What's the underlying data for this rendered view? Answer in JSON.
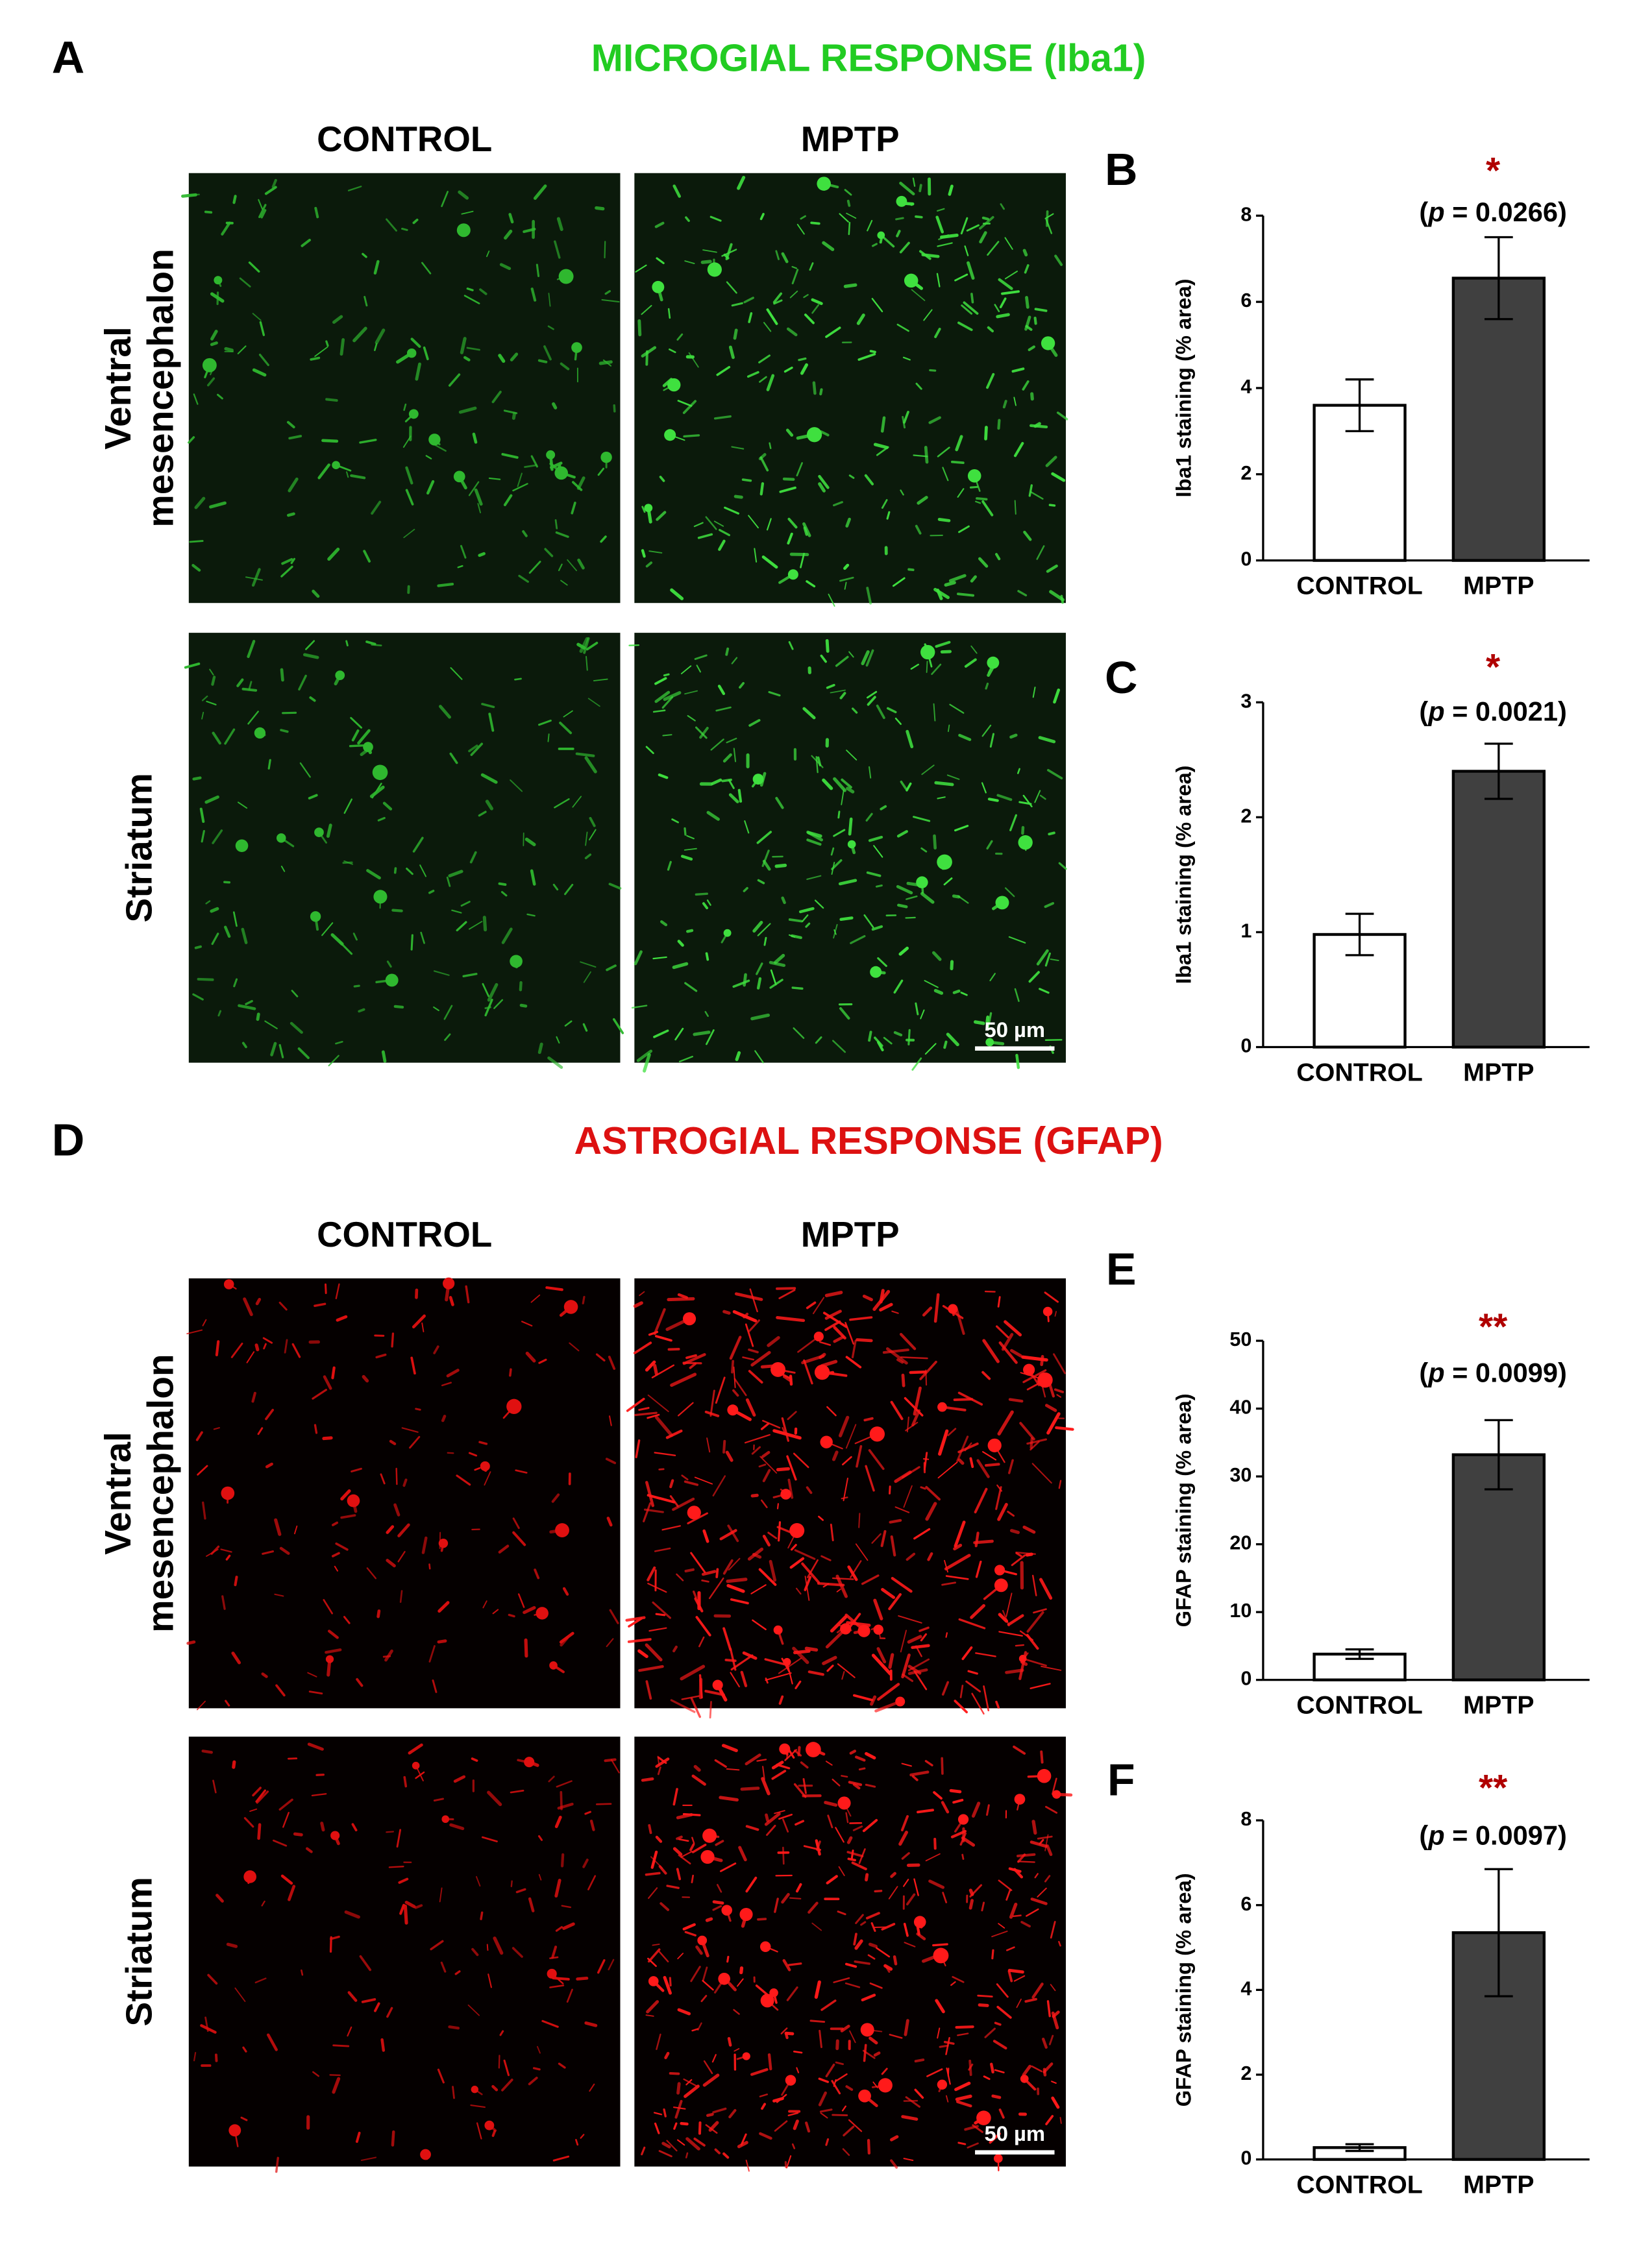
{
  "sections": [
    {
      "panel": "A",
      "title": "MICROGIAL RESPONSE (Iba1)",
      "title_color": "#22cc22",
      "stain": "green",
      "columns": [
        "CONTROL",
        "MPTP"
      ],
      "rows": [
        [
          "Ventral",
          "mesencephalon"
        ],
        [
          "Striatum"
        ]
      ],
      "scale_bar": "50 µm"
    },
    {
      "panel": "D",
      "title": "ASTROGIAL RESPONSE (GFAP)",
      "title_color": "#dd1111",
      "stain": "red",
      "columns": [
        "CONTROL",
        "MPTP"
      ],
      "rows": [
        [
          "Ventral",
          "mesencephalon"
        ],
        [
          "Striatum"
        ]
      ],
      "scale_bar": "50 µm"
    }
  ],
  "chart_data": [
    {
      "type": "bar",
      "panel": "B",
      "ylabel": "Iba1 staining (% area)",
      "categories": [
        "CONTROL",
        "MPTP"
      ],
      "values": [
        3.6,
        6.55
      ],
      "errors": [
        0.6,
        0.95
      ],
      "colors": [
        "#ffffff",
        "#404040"
      ],
      "ylim": [
        0,
        8
      ],
      "yticks": [
        0,
        2,
        4,
        6,
        8
      ],
      "significance": "*",
      "annotation": [
        "(",
        "p",
        " = 0.0266)"
      ]
    },
    {
      "type": "bar",
      "panel": "C",
      "ylabel": "Iba1 staining (% area)",
      "categories": [
        "CONTROL",
        "MPTP"
      ],
      "values": [
        0.98,
        2.4
      ],
      "errors": [
        0.18,
        0.24
      ],
      "colors": [
        "#ffffff",
        "#404040"
      ],
      "ylim": [
        0,
        3
      ],
      "yticks": [
        0,
        1,
        2,
        3
      ],
      "significance": "*",
      "annotation": [
        "(",
        "p",
        " = 0.0021)"
      ]
    },
    {
      "type": "bar",
      "panel": "E",
      "ylabel": "GFAP staining (% area)",
      "categories": [
        "CONTROL",
        "MPTP"
      ],
      "values": [
        3.8,
        33.2
      ],
      "errors": [
        0.7,
        5.1
      ],
      "colors": [
        "#ffffff",
        "#404040"
      ],
      "ylim": [
        0,
        50
      ],
      "yticks": [
        0,
        10,
        20,
        30,
        40,
        50
      ],
      "significance": "**",
      "annotation": [
        "(",
        "p",
        " = 0.0099)"
      ]
    },
    {
      "type": "bar",
      "panel": "F",
      "ylabel": "GFAP staining (% area)",
      "categories": [
        "CONTROL",
        "MPTP"
      ],
      "values": [
        0.28,
        5.35
      ],
      "errors": [
        0.08,
        1.5
      ],
      "colors": [
        "#ffffff",
        "#404040"
      ],
      "ylim": [
        0,
        8
      ],
      "yticks": [
        0,
        2,
        4,
        6,
        8
      ],
      "significance": "**",
      "annotation": [
        "(",
        "p",
        " = 0.0097)"
      ]
    }
  ]
}
